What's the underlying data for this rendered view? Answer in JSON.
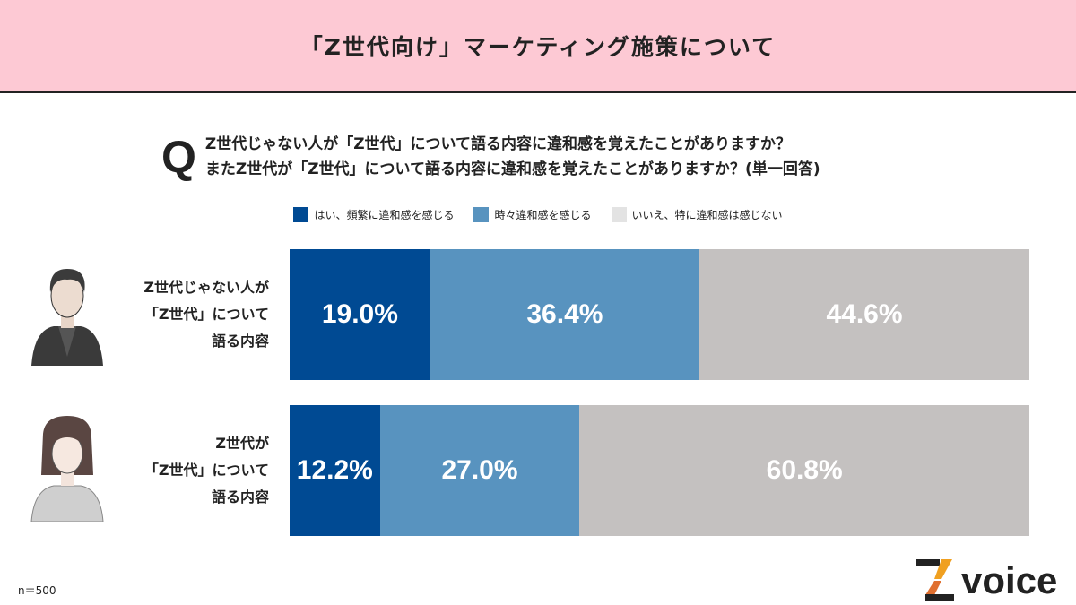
{
  "header": {
    "title": "「Z世代向け」マーケティング施策について"
  },
  "question": {
    "mark": "Q",
    "line1": "Z世代じゃない人が「Z世代」について語る内容に違和感を覚えたことがありますか？",
    "line2": "またZ世代が「Z世代」について語る内容に違和感を覚えたことがありますか？(単一回答)"
  },
  "chart_data": {
    "type": "bar",
    "stacked": true,
    "orientation": "horizontal",
    "unit": "%",
    "series": [
      {
        "name": "はい、頻繁に違和感を感じる",
        "color": "#004a93",
        "values": [
          19.0,
          12.2
        ]
      },
      {
        "name": "時々違和感を感じる",
        "color": "#5893bf",
        "values": [
          36.4,
          27.0
        ]
      },
      {
        "name": "いいえ、特に違和感は感じない",
        "color": "#c4c1c0",
        "values": [
          44.6,
          60.8
        ]
      }
    ],
    "categories": [
      {
        "lines": [
          "Z世代じゃない人が",
          "「Z世代」について",
          "語る内容"
        ]
      },
      {
        "lines": [
          "Z世代が",
          "「Z世代」について",
          "語る内容"
        ]
      }
    ],
    "labels": [
      [
        "19.0%",
        "36.4%",
        "44.6%"
      ],
      [
        "12.2%",
        "27.0%",
        "60.8%"
      ]
    ],
    "legend_position": "top",
    "xlim": [
      0,
      100
    ]
  },
  "legend_colors": {
    "series2_swatch": "#e3e3e3"
  },
  "footer": {
    "n": "n＝500",
    "logo": "Z voice"
  }
}
